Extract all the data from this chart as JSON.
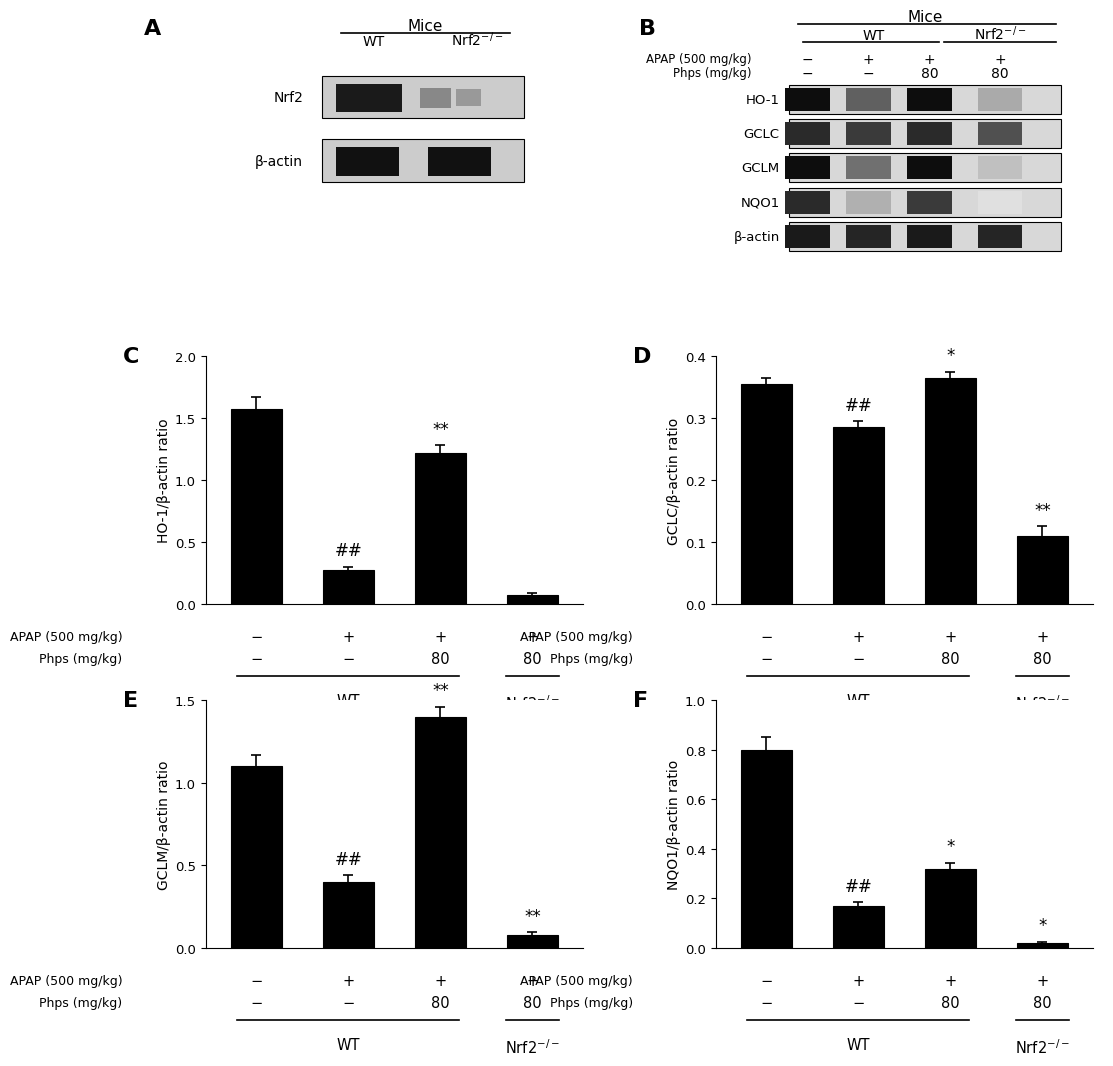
{
  "panel_C": {
    "values": [
      1.57,
      0.27,
      1.22,
      0.07
    ],
    "errors": [
      0.1,
      0.03,
      0.06,
      0.02
    ],
    "ylabel": "HO-1/β-actin ratio",
    "ylim": [
      0,
      2.0
    ],
    "yticks": [
      0.0,
      0.5,
      1.0,
      1.5,
      2.0
    ],
    "annotations": [
      "",
      "##",
      "**",
      ""
    ],
    "label": "C"
  },
  "panel_D": {
    "values": [
      0.355,
      0.285,
      0.365,
      0.11
    ],
    "errors": [
      0.01,
      0.01,
      0.01,
      0.015
    ],
    "ylabel": "GCLC/β-actin ratio",
    "ylim": [
      0,
      0.4
    ],
    "yticks": [
      0.0,
      0.1,
      0.2,
      0.3,
      0.4
    ],
    "annotations": [
      "",
      "##",
      "*",
      "**"
    ],
    "label": "D"
  },
  "panel_E": {
    "values": [
      1.1,
      0.4,
      1.4,
      0.08
    ],
    "errors": [
      0.07,
      0.04,
      0.06,
      0.015
    ],
    "ylabel": "GCLM/β-actin ratio",
    "ylim": [
      0,
      1.5
    ],
    "yticks": [
      0.0,
      0.5,
      1.0,
      1.5
    ],
    "annotations": [
      "",
      "##",
      "**",
      "**"
    ],
    "label": "E"
  },
  "panel_F": {
    "values": [
      0.8,
      0.17,
      0.32,
      0.02
    ],
    "errors": [
      0.05,
      0.015,
      0.025,
      0.005
    ],
    "ylabel": "NQO1/β-actin ratio",
    "ylim": [
      0,
      1.0
    ],
    "yticks": [
      0.0,
      0.2,
      0.4,
      0.6,
      0.8,
      1.0
    ],
    "annotations": [
      "",
      "##",
      "*",
      "*"
    ],
    "label": "F"
  },
  "bar_color": "#000000",
  "bar_width": 0.55,
  "apap_row": [
    "−",
    "+",
    "+",
    "+"
  ],
  "phps_row": [
    "−",
    "−",
    "80",
    "80"
  ],
  "apap_label": "APAP (500 mg/kg)",
  "phps_label": "Phps (mg/kg)",
  "wt_label": "WT",
  "nrf2_label": "Nrf2$^{-/-}$",
  "blot_A": {
    "label": "A",
    "mice_text": "Mice",
    "col_labels": [
      "WT",
      "Nrf2$^{-/-}$"
    ],
    "row_labels": [
      "Nrf2",
      "β-actin"
    ],
    "band_colors": [
      [
        "#222222",
        "#808080",
        "#909090"
      ],
      [
        "#111111",
        "#111111",
        "#888888"
      ]
    ]
  },
  "blot_B": {
    "label": "B",
    "mice_text": "Mice",
    "wt_label": "WT",
    "nrf2_label": "Nrf2$^{-/-}$",
    "row_labels": [
      "HO-1",
      "GCLC",
      "GCLM",
      "NQO1",
      "β-actin"
    ],
    "apap_row": [
      "−",
      "+",
      "+",
      "+"
    ],
    "phps_row": [
      "−",
      "−",
      "80",
      "80"
    ]
  }
}
